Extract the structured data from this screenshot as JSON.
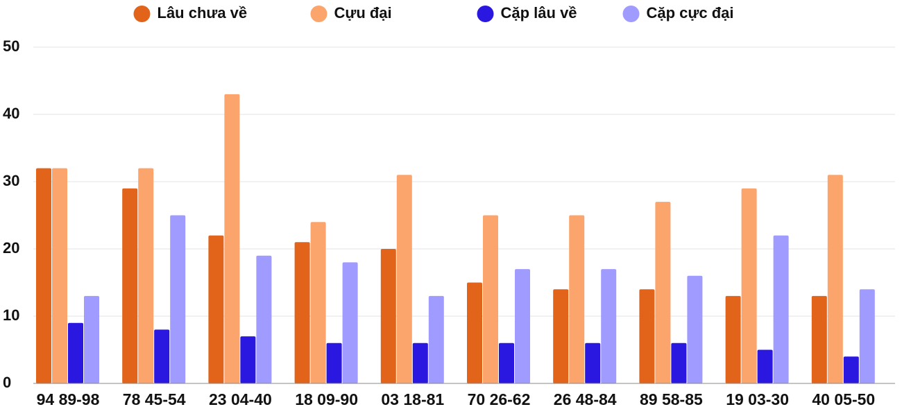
{
  "chart_data": {
    "type": "bar",
    "categories": [
      "94 89-98",
      "78 45-54",
      "23 04-40",
      "18 09-90",
      "03 18-81",
      "70 26-62",
      "26 48-84",
      "89 58-85",
      "19 03-30",
      "40 05-50"
    ],
    "series": [
      {
        "name": "Lâu chưa về",
        "color": "#e2641a",
        "values": [
          32,
          29,
          22,
          21,
          20,
          15,
          14,
          14,
          13,
          13
        ]
      },
      {
        "name": "Cựu đại",
        "color": "#fba46b",
        "values": [
          32,
          32,
          43,
          24,
          31,
          25,
          25,
          27,
          29,
          31
        ]
      },
      {
        "name": "Cặp lâu về",
        "color": "#2a17e0",
        "values": [
          9,
          8,
          7,
          6,
          6,
          6,
          6,
          6,
          5,
          4
        ]
      },
      {
        "name": "Cặp cực đại",
        "color": "#a09cff",
        "values": [
          13,
          25,
          19,
          18,
          13,
          17,
          17,
          16,
          22,
          14
        ]
      }
    ],
    "ylim": [
      0,
      50
    ],
    "yticks": [
      0,
      10,
      20,
      30,
      40,
      50
    ],
    "grid": true,
    "legend": "top"
  }
}
